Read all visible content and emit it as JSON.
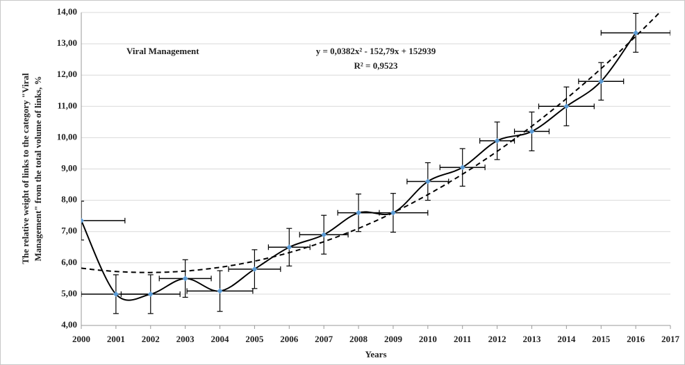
{
  "chart_data": {
    "type": "line",
    "ylabel": [
      "The relative weight of links to the category \"Viral",
      "Management\" from the total volume of links, %"
    ],
    "xlabel": "Years",
    "annotations": [
      "Viral Management",
      "y = 0,0382x² - 152,79x + 152939",
      "R² = 0,9523"
    ],
    "x": [
      2000,
      2001,
      2002,
      2003,
      2004,
      2005,
      2006,
      2007,
      2008,
      2009,
      2010,
      2011,
      2012,
      2013,
      2014,
      2015,
      2016
    ],
    "series": [
      {
        "color": "#000000",
        "marker_color": "#5b9bd5",
        "values": [
          7.35,
          5.0,
          5.0,
          5.5,
          5.1,
          5.8,
          6.5,
          6.9,
          7.6,
          7.6,
          8.6,
          9.05,
          9.9,
          10.2,
          11.0,
          11.8,
          13.35
        ],
        "yerr": [
          0.62,
          0.62,
          0.62,
          0.6,
          0.65,
          0.62,
          0.6,
          0.62,
          0.6,
          0.62,
          0.6,
          0.6,
          0.6,
          0.62,
          0.62,
          0.6,
          0.62
        ],
        "xerr": [
          1.26,
          1.0,
          0.85,
          0.75,
          0.95,
          0.75,
          0.6,
          0.7,
          0.6,
          1.0,
          0.6,
          0.65,
          0.5,
          0.5,
          0.8,
          0.65,
          1.0
        ]
      }
    ],
    "trendline": {
      "kind": "polynomial",
      "order": 2,
      "dashed": true,
      "color": "#000000",
      "until": 2016.7
    },
    "xlim": [
      2000,
      2017
    ],
    "xticks": [
      2000,
      2001,
      2002,
      2003,
      2004,
      2005,
      2006,
      2007,
      2008,
      2009,
      2010,
      2011,
      2012,
      2013,
      2014,
      2015,
      2016,
      2017
    ],
    "ylim": [
      4,
      14
    ],
    "yticks": [
      {
        "value": 4,
        "label": "4,00"
      },
      {
        "value": 5,
        "label": "5,00"
      },
      {
        "value": 6,
        "label": "6,00"
      },
      {
        "value": 7,
        "label": "7,00"
      },
      {
        "value": 8,
        "label": "8,00"
      },
      {
        "value": 9,
        "label": "9,00"
      },
      {
        "value": 10,
        "label": "10,00"
      },
      {
        "value": 11,
        "label": "11,00"
      },
      {
        "value": 12,
        "label": "12,00"
      },
      {
        "value": 13,
        "label": "13,00"
      },
      {
        "value": 14,
        "label": "14,00"
      }
    ],
    "grid": true
  }
}
